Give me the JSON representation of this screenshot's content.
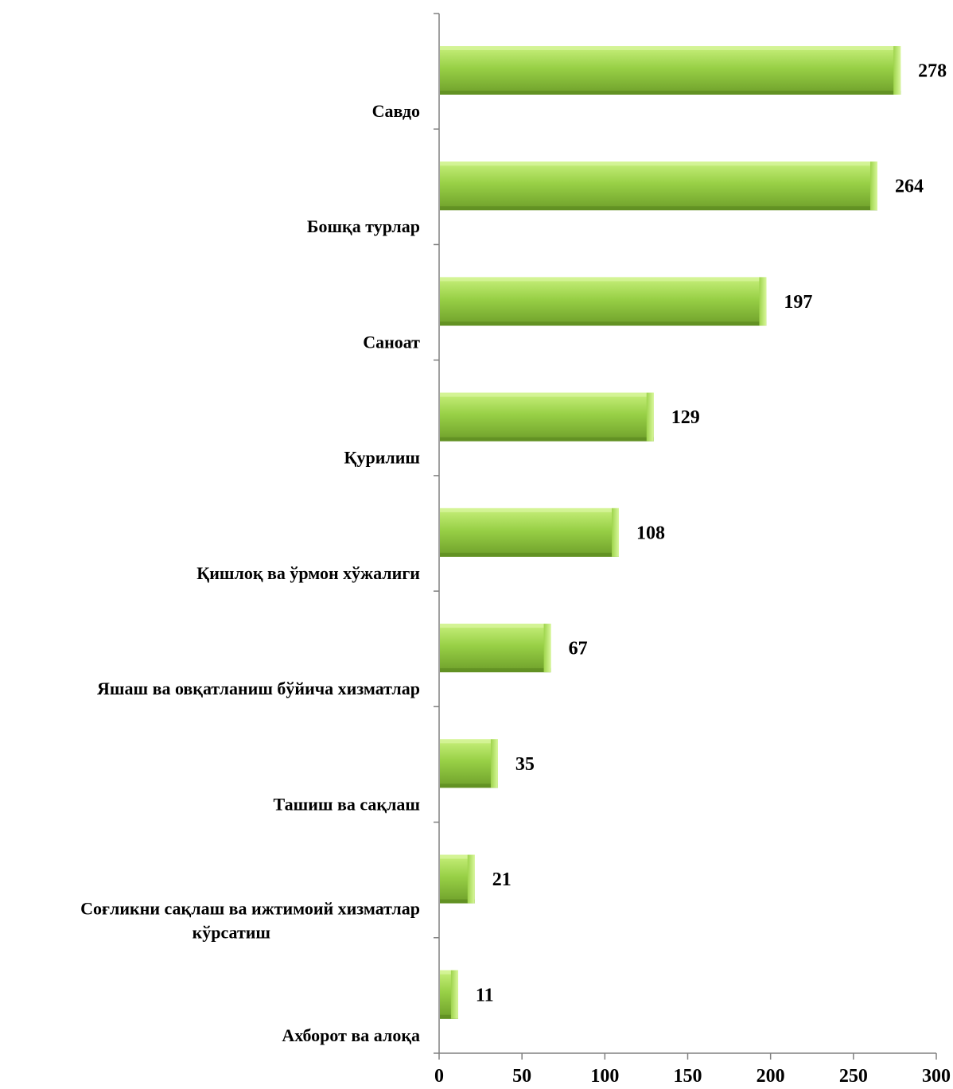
{
  "chart_data": {
    "type": "bar",
    "orientation": "horizontal",
    "categories": [
      "Ахборот ва алоқа",
      "Соғликни сақлаш ва ижтимоий хизматлар кўрсатиш",
      "Ташиш ва сақлаш",
      "Яшаш ва овқатланиш бўйича хизматлар",
      "Қишлоқ ва ўрмон хўжалиги",
      "Қурилиш",
      "Саноат",
      "Бошқа турлар",
      "Савдо"
    ],
    "category_lines": [
      [
        "Ахборот ва алоқа"
      ],
      [
        "Соғликни сақлаш ва ижтимоий хизматлар",
        "кўрсатиш"
      ],
      [
        "Ташиш ва сақлаш"
      ],
      [
        "Яшаш ва овқатланиш бўйича хизматлар"
      ],
      [
        "Қишлоқ ва ўрмон хўжалиги"
      ],
      [
        "Қурилиш"
      ],
      [
        "Саноат"
      ],
      [
        "Бошқа турлар"
      ],
      [
        "Савдо"
      ]
    ],
    "values": [
      11,
      21,
      35,
      67,
      108,
      129,
      197,
      264,
      278
    ],
    "xlim": [
      0,
      300
    ],
    "xticks": [
      "0",
      "50",
      "100",
      "150",
      "200",
      "250",
      "300"
    ],
    "title": "",
    "xlabel": "",
    "ylabel": "",
    "grid": false,
    "legend": "none",
    "bar_color": "#8cc63f",
    "bar_highlight": "#c6ef7a",
    "bar_shadow": "#6a9a28"
  }
}
